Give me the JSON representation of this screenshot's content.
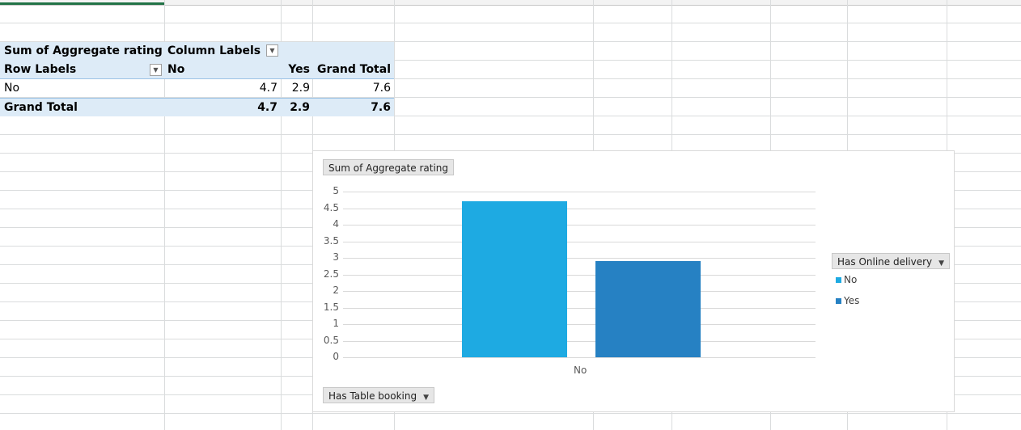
{
  "pivot": {
    "corner_label": "Sum of Aggregate rating",
    "column_labels": "Column Labels",
    "row_labels": "Row Labels",
    "col_headers": [
      "No",
      "Yes",
      "Grand Total"
    ],
    "rows": [
      {
        "label": "No",
        "values": [
          "4.7",
          "2.9",
          "7.6"
        ]
      }
    ],
    "grand_total": {
      "label": "Grand Total",
      "values": [
        "4.7",
        "2.9",
        "7.6"
      ]
    }
  },
  "chart_data": {
    "type": "bar",
    "title": "",
    "value_field_button": "Sum of Aggregate rating",
    "axis_field_button": "Has Table booking",
    "legend_field_button": "Has Online delivery",
    "categories": [
      "No"
    ],
    "series": [
      {
        "name": "No",
        "values": [
          4.7
        ],
        "color": "#1eaae2"
      },
      {
        "name": "Yes",
        "values": [
          2.9
        ],
        "color": "#2681c3"
      }
    ],
    "ylim": [
      0,
      5
    ],
    "yticks": [
      "0",
      "0.5",
      "1",
      "1.5",
      "2",
      "2.5",
      "3",
      "3.5",
      "4",
      "4.5",
      "5"
    ],
    "grid": true,
    "legend_placement": "right"
  }
}
